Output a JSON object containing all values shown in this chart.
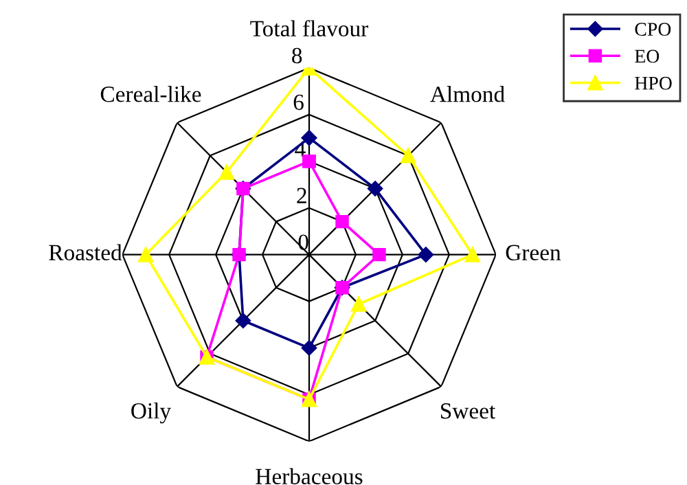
{
  "chart_data": {
    "type": "radar",
    "categories": [
      "Total flavour",
      "Almond",
      "Green",
      "Sweet",
      "Herbaceous",
      "Oily",
      "Roasted",
      "Cereal-like"
    ],
    "series": [
      {
        "name": "CPO",
        "color": "#000080",
        "marker": "diamond",
        "values": [
          5,
          4,
          5,
          2,
          4,
          4,
          3,
          4
        ]
      },
      {
        "name": "EO",
        "color": "#ff00ff",
        "marker": "square",
        "values": [
          4,
          2,
          3,
          2,
          6.2,
          6.2,
          3,
          4
        ]
      },
      {
        "name": "HPO",
        "color": "#ffff00",
        "marker": "triangle",
        "values": [
          8,
          6,
          7,
          3,
          6.2,
          6.2,
          7,
          5
        ]
      }
    ],
    "ylim": [
      0,
      8
    ],
    "yticks": [
      0,
      2,
      4,
      6,
      8
    ],
    "grid": true,
    "legend": "top right"
  }
}
